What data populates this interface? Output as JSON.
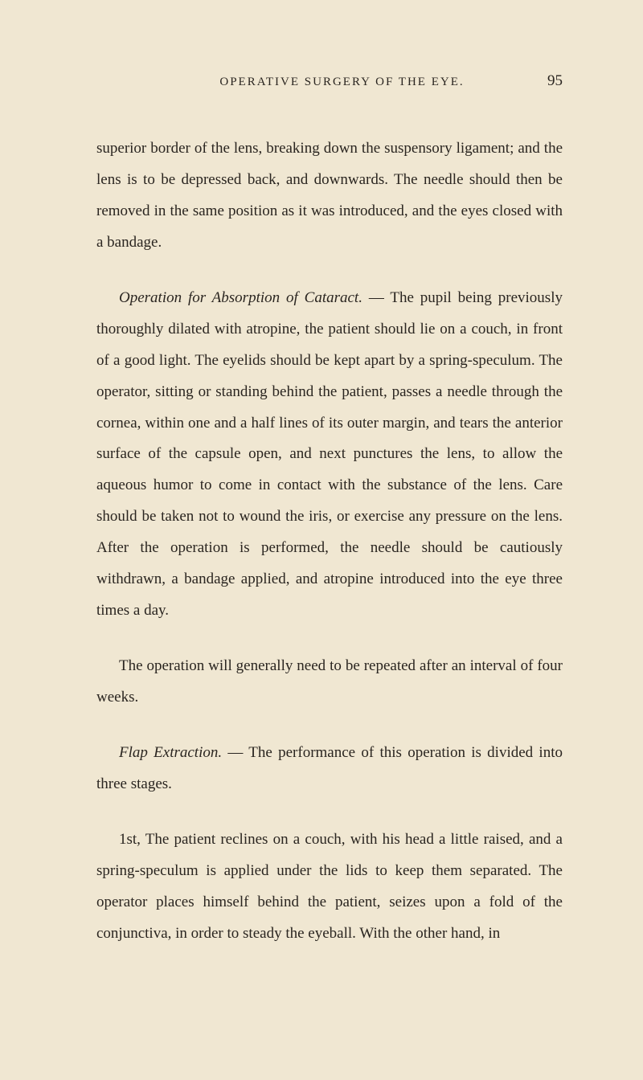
{
  "page": {
    "running_head": "OPERATIVE SURGERY OF THE EYE.",
    "number": "95"
  },
  "paragraphs": {
    "p1": "superior border of the lens, breaking down the suspensory ligament; and the lens is to be depressed back, and down­wards. The needle should then be removed in the same position as it was introduced, and the eyes closed with a bandage.",
    "p2_italic": "Operation for Absorption of Cataract.",
    "p2_rest": " — The pupil being previously thoroughly dilated with atropine, the patient should lie on a couch, in front of a good light. The eyelids should be kept apart by a spring-speculum. The operator, sitting or standing behind the patient, passes a needle through the cornea, within one and a half lines of its outer margin, and tears the anterior surface of the capsule open, and next punctures the lens, to allow the aqueous humor to come in contact with the substance of the lens. Care should be taken not to wound the iris, or exercise any pressure on the lens. After the operation is performed, the needle should be cautiously withdrawn, a bandage applied, and atropine introduced into the eye three times a day.",
    "p3": "The operation will generally need to be repeated after an interval of four weeks.",
    "p4_italic": "Flap Extraction.",
    "p4_rest": " — The performance of this operation is divided into three stages.",
    "p5": "1st, The patient reclines on a couch, with his head a little raised, and a spring-speculum is applied under the lids to keep them separated. The operator places himself behind the patient, seizes upon a fold of the conjunctiva, in order to steady the eyeball. With the other hand, in"
  },
  "style": {
    "background_color": "#f0e7d2",
    "text_color": "#2a2520",
    "body_fontsize": 19,
    "line_height": 2.05,
    "header_fontsize": 15
  }
}
